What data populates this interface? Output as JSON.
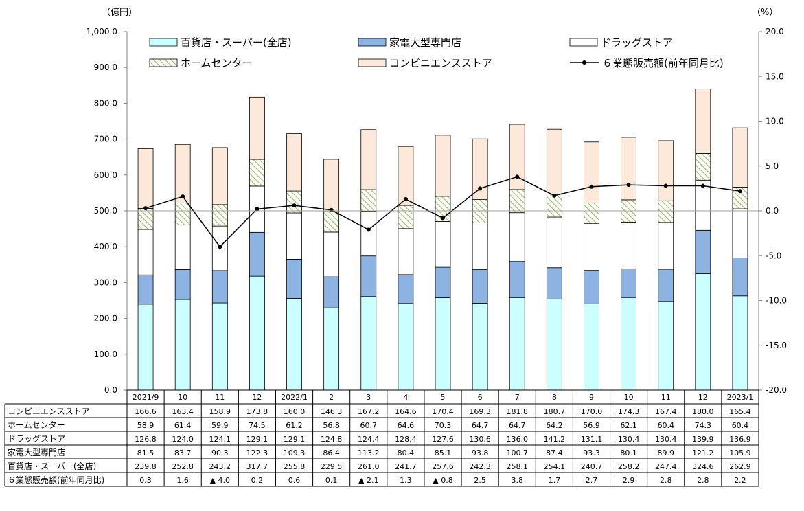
{
  "chart_data": {
    "type": "bar",
    "stacked": true,
    "title": "",
    "left_unit": "（億円）",
    "right_unit": "（%）",
    "categories": [
      "2021/9",
      "10",
      "11",
      "12",
      "2022/1",
      "2",
      "3",
      "4",
      "5",
      "6",
      "7",
      "8",
      "9",
      "10",
      "11",
      "12",
      "2023/1"
    ],
    "ylim": [
      0,
      1000
    ],
    "yticks": [
      "0.0",
      "100.0",
      "200.0",
      "300.0",
      "400.0",
      "500.0",
      "600.0",
      "700.0",
      "800.0",
      "900.0",
      "1,000.0"
    ],
    "y2lim": [
      -20,
      20
    ],
    "y2ticks": [
      "-20.0",
      "-15.0",
      "-10.0",
      "-5.0",
      "0.0",
      "5.0",
      "10.0",
      "15.0",
      "20.0"
    ],
    "grid": false,
    "legend_position": "top",
    "series": [
      {
        "name": "百貨店・スーパー(全店)",
        "color": "#ccffff",
        "pattern": "none",
        "values": [
          239.8,
          252.8,
          243.2,
          317.7,
          255.8,
          229.5,
          261.0,
          241.7,
          257.6,
          242.3,
          258.1,
          254.1,
          240.7,
          258.2,
          247.4,
          324.6,
          262.9
        ]
      },
      {
        "name": "家電大型専門店",
        "color": "#8db3e2",
        "pattern": "none",
        "values": [
          81.5,
          83.7,
          90.3,
          122.3,
          109.3,
          86.4,
          113.2,
          80.4,
          85.1,
          93.8,
          100.7,
          87.4,
          93.3,
          80.1,
          89.9,
          121.2,
          105.9
        ]
      },
      {
        "name": "ドラッグストア",
        "color": "#ffffff",
        "pattern": "none",
        "values": [
          126.8,
          124.0,
          124.1,
          129.1,
          129.1,
          124.8,
          124.4,
          128.4,
          127.6,
          130.6,
          136.0,
          141.2,
          131.1,
          130.4,
          130.4,
          139.9,
          136.9
        ]
      },
      {
        "name": "ホームセンター",
        "color": "#9bbb59",
        "pattern": "hatch",
        "values": [
          58.9,
          61.4,
          59.9,
          74.5,
          61.2,
          56.8,
          60.7,
          64.6,
          70.3,
          64.7,
          64.7,
          64.2,
          56.9,
          62.1,
          60.4,
          74.3,
          60.4
        ]
      },
      {
        "name": "コンビニエンスストア",
        "color": "#fde9d9",
        "pattern": "none",
        "values": [
          166.6,
          163.4,
          158.9,
          173.8,
          160.0,
          146.3,
          167.2,
          164.6,
          170.4,
          169.3,
          181.8,
          180.7,
          170.0,
          174.3,
          167.4,
          180.0,
          165.4
        ]
      }
    ],
    "line_series": {
      "name": "６業態販売額(前年同月比)",
      "axis": "right",
      "color": "#000000",
      "values": [
        0.3,
        1.6,
        -4.0,
        0.2,
        0.6,
        0.1,
        -2.1,
        1.3,
        -0.8,
        2.5,
        3.8,
        1.7,
        2.7,
        2.9,
        2.8,
        2.8,
        2.2
      ]
    },
    "table": {
      "rows": [
        {
          "label": "コンビニエンスストア",
          "cells": [
            "166.6",
            "163.4",
            "158.9",
            "173.8",
            "160.0",
            "146.3",
            "167.2",
            "164.6",
            "170.4",
            "169.3",
            "181.8",
            "180.7",
            "170.0",
            "174.3",
            "167.4",
            "180.0",
            "165.4"
          ]
        },
        {
          "label": "ホームセンター",
          "cells": [
            "58.9",
            "61.4",
            "59.9",
            "74.5",
            "61.2",
            "56.8",
            "60.7",
            "64.6",
            "70.3",
            "64.7",
            "64.7",
            "64.2",
            "56.9",
            "62.1",
            "60.4",
            "74.3",
            "60.4"
          ]
        },
        {
          "label": "ドラッグストア",
          "cells": [
            "126.8",
            "124.0",
            "124.1",
            "129.1",
            "129.1",
            "124.8",
            "124.4",
            "128.4",
            "127.6",
            "130.6",
            "136.0",
            "141.2",
            "131.1",
            "130.4",
            "130.4",
            "139.9",
            "136.9"
          ]
        },
        {
          "label": "家電大型専門店",
          "cells": [
            "81.5",
            "83.7",
            "90.3",
            "122.3",
            "109.3",
            "86.4",
            "113.2",
            "80.4",
            "85.1",
            "93.8",
            "100.7",
            "87.4",
            "93.3",
            "80.1",
            "89.9",
            "121.2",
            "105.9"
          ]
        },
        {
          "label": "百貨店・スーパー(全店)",
          "cells": [
            "239.8",
            "252.8",
            "243.2",
            "317.7",
            "255.8",
            "229.5",
            "261.0",
            "241.7",
            "257.6",
            "242.3",
            "258.1",
            "254.1",
            "240.7",
            "258.2",
            "247.4",
            "324.6",
            "262.9"
          ]
        },
        {
          "label": "６業態販売額(前年同月比)",
          "cells": [
            "0.3",
            "1.6",
            "▲ 4.0",
            "0.2",
            "0.6",
            "0.1",
            "▲ 2.1",
            "1.3",
            "▲ 0.8",
            "2.5",
            "3.8",
            "1.7",
            "2.7",
            "2.9",
            "2.8",
            "2.8",
            "2.2"
          ]
        }
      ]
    }
  }
}
